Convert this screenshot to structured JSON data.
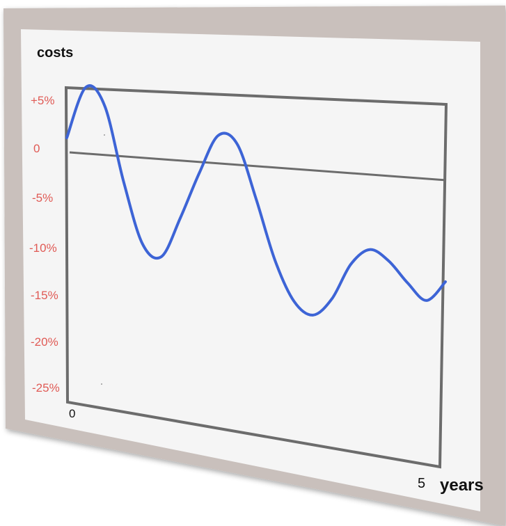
{
  "chart_data": {
    "type": "line",
    "ylabel": "costs",
    "xlabel": "years",
    "colors": {
      "frame": "#c9c0bc",
      "panel": "#f5f5f5",
      "axis": "#6c6c6c",
      "tick_label": "#e05a55",
      "series": "#3d64d6",
      "text": "#111111"
    },
    "y_tick_labels": [
      "+5%",
      "0",
      "-5%",
      "-10%",
      "-15%",
      "-20%",
      "-25%"
    ],
    "y_tick_values": [
      5,
      0,
      -5,
      -10,
      -15,
      -20,
      -25
    ],
    "x_tick_labels": [
      "0",
      "5"
    ],
    "x_tick_values": [
      0,
      5
    ],
    "xlim": [
      0,
      5
    ],
    "ylim": [
      -25,
      5
    ],
    "zero_line": 0,
    "series": [
      {
        "x": [
          0,
          0.25,
          0.5,
          0.75,
          1.0,
          1.25,
          1.5,
          1.75,
          2.0,
          2.25,
          2.5,
          2.75,
          3.0,
          3.25,
          3.5,
          3.75,
          4.0,
          4.25,
          4.5,
          4.75,
          5.0
        ],
        "values": [
          1.0,
          6.3,
          4.5,
          -3.0,
          -9.0,
          -10.0,
          -6.0,
          -1.5,
          2.2,
          1.5,
          -3.5,
          -9.0,
          -12.5,
          -13.5,
          -11.8,
          -8.5,
          -7.0,
          -7.8,
          -9.5,
          -10.8,
          -9.0
        ]
      }
    ]
  }
}
